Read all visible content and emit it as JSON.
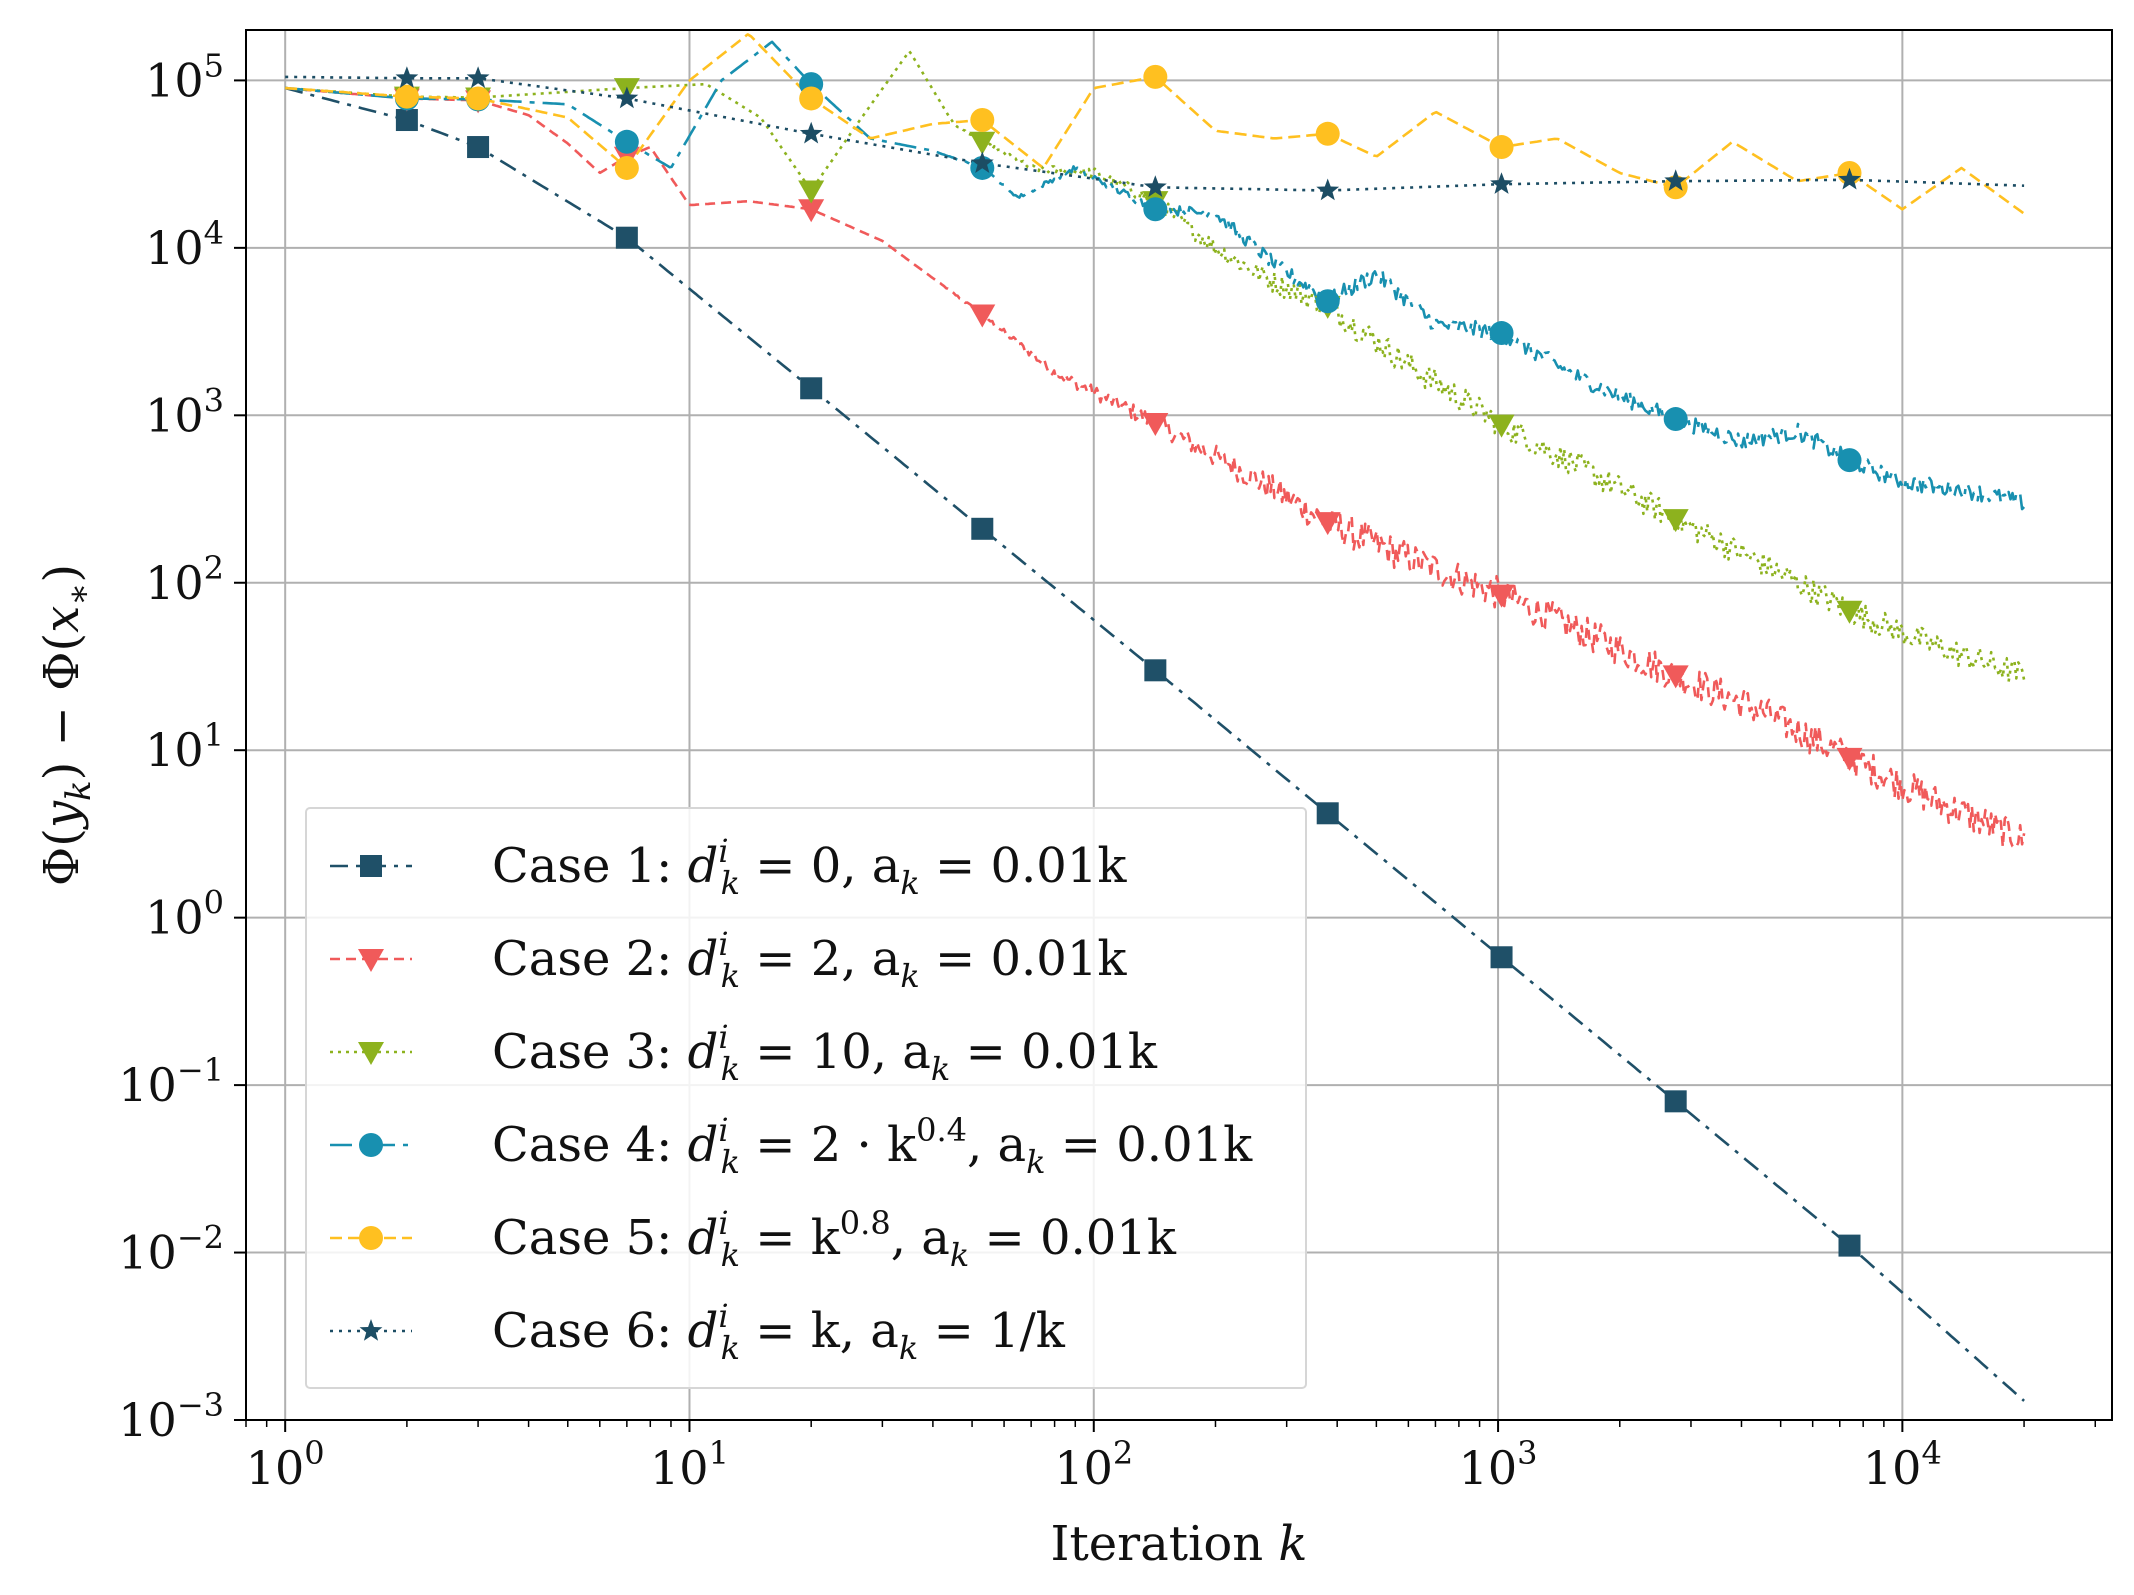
{
  "chart_data": {
    "type": "line",
    "xscale": "log",
    "yscale": "log",
    "xlim": [
      0.8,
      33000
    ],
    "ylim": [
      0.001,
      200000
    ],
    "grid": true,
    "xlabel": "Iteration k",
    "ylabel": "Φ(y_k) − Φ(x_*)",
    "legend_position": "lower-left",
    "x_ticks": [
      {
        "base": "10",
        "exp": "0",
        "value": 1
      },
      {
        "base": "10",
        "exp": "1",
        "value": 10
      },
      {
        "base": "10",
        "exp": "2",
        "value": 100
      },
      {
        "base": "10",
        "exp": "3",
        "value": 1000
      },
      {
        "base": "10",
        "exp": "4",
        "value": 10000
      }
    ],
    "y_ticks": [
      {
        "base": "10",
        "exp": "5",
        "value": 100000
      },
      {
        "base": "10",
        "exp": "4",
        "value": 10000
      },
      {
        "base": "10",
        "exp": "3",
        "value": 1000
      },
      {
        "base": "10",
        "exp": "2",
        "value": 100
      },
      {
        "base": "10",
        "exp": "1",
        "value": 10
      },
      {
        "base": "10",
        "exp": "0",
        "value": 1
      },
      {
        "base": "10",
        "exp": "−1",
        "value": 0.1
      },
      {
        "base": "10",
        "exp": "−2",
        "value": 0.01
      },
      {
        "base": "10",
        "exp": "−3",
        "value": 0.001
      }
    ],
    "series": [
      {
        "name": "Case 1: d_k^i = 0, a_k = 0.01k",
        "legend_parts": [
          "Case 1: ",
          "d",
          "i",
          "k",
          " = 0, a",
          "k",
          " = 0.01k"
        ],
        "color": "#1f5068",
        "marker": "square",
        "dash": "18,8,4,8",
        "x": [
          1,
          2,
          3,
          7,
          20,
          53,
          142,
          379,
          1020,
          2750,
          7400,
          20000
        ],
        "values": [
          90000,
          58000,
          40000,
          11500,
          1450,
          210,
          30,
          4.2,
          0.58,
          0.08,
          0.011,
          0.0013
        ],
        "marker_x": [
          2,
          3,
          7,
          20,
          53,
          142,
          379,
          1020,
          2750,
          7400
        ]
      },
      {
        "name": "Case 2: d_k^i = 2, a_k = 0.01k",
        "color": "#f05a5a",
        "marker": "triangle-down",
        "dash": "10,6",
        "x": [
          1,
          2,
          3,
          4,
          5,
          6,
          7,
          8,
          10,
          14,
          20,
          30,
          53,
          80,
          142,
          250,
          379,
          600,
          1020,
          1700,
          2750,
          4500,
          7400,
          12000,
          20000
        ],
        "values": [
          90000,
          78000,
          76000,
          62000,
          42000,
          28000,
          35000,
          40000,
          18000,
          19000,
          17000,
          11000,
          4000,
          1800,
          900,
          420,
          230,
          140,
          85,
          48,
          28,
          17,
          9,
          5,
          2.9
        ],
        "jitter": 0.1,
        "marker_x": [
          2,
          3,
          7,
          20,
          53,
          142,
          379,
          1020,
          2750,
          7400
        ]
      },
      {
        "name": "Case 3: d_k^i = 10, a_k = 0.01k",
        "color": "#8db21e",
        "marker": "triangle-down",
        "dash": "3,5",
        "x": [
          1,
          2,
          3,
          7,
          11,
          15,
          20,
          26,
          35,
          45,
          53,
          70,
          100,
          142,
          200,
          270,
          379,
          600,
          1020,
          1700,
          2750,
          4500,
          7400,
          12000,
          20000
        ],
        "values": [
          90000,
          80000,
          79000,
          90000,
          95000,
          60000,
          22000,
          55000,
          150000,
          55000,
          43000,
          30000,
          28000,
          19000,
          10000,
          6500,
          4500,
          2000,
          880,
          450,
          240,
          130,
          68,
          42,
          28
        ],
        "jitter": 0.08,
        "marker_x": [
          2,
          3,
          7,
          20,
          53,
          142,
          379,
          1020,
          2750,
          7400
        ]
      },
      {
        "name": "Case 4: d_k^i = 2 · k^0.4, a_k = 0.01k",
        "color": "#1890b0",
        "marker": "circle",
        "dash": "22,8,5,8",
        "x": [
          1,
          2,
          3,
          5,
          7,
          9,
          12,
          16,
          20,
          28,
          40,
          53,
          65,
          90,
          142,
          200,
          280,
          379,
          500,
          700,
          1020,
          1500,
          2000,
          2750,
          4000,
          5500,
          7400,
          10000,
          15000,
          20000
        ],
        "values": [
          90000,
          78000,
          77000,
          72000,
          43000,
          30000,
          100000,
          170000,
          95000,
          45000,
          38000,
          30000,
          20000,
          30000,
          17000,
          16000,
          8000,
          4800,
          7000,
          3500,
          3100,
          1800,
          1300,
          950,
          700,
          800,
          540,
          400,
          350,
          300
        ],
        "jitter": 0.05,
        "marker_x": [
          2,
          3,
          7,
          20,
          53,
          142,
          379,
          1020,
          2750,
          7400
        ]
      },
      {
        "name": "Case 5: d_k^i = k^0.8, a_k = 0.01k",
        "color": "#ffc020",
        "marker": "circle",
        "dash": "12,6",
        "x": [
          1,
          2,
          3,
          5,
          7,
          10,
          14,
          20,
          28,
          40,
          53,
          75,
          100,
          142,
          200,
          280,
          379,
          500,
          700,
          1020,
          1400,
          2000,
          2750,
          3800,
          5500,
          7400,
          10000,
          14000,
          20000
        ],
        "values": [
          90000,
          80000,
          78000,
          60000,
          30000,
          100000,
          190000,
          78000,
          45000,
          55000,
          58000,
          30000,
          90000,
          105000,
          50000,
          45000,
          48000,
          35000,
          65000,
          40000,
          45000,
          28000,
          23000,
          43000,
          25000,
          28000,
          17000,
          30000,
          16000
        ],
        "jitter": 0,
        "marker_x": [
          2,
          3,
          7,
          20,
          53,
          142,
          379,
          1020,
          2750,
          7400
        ]
      },
      {
        "name": "Case 6: d_k^i = k, a_k = 1/k",
        "color": "#1c4d64",
        "marker": "star",
        "dash": "3,6",
        "x": [
          1,
          2,
          3,
          7,
          20,
          53,
          142,
          379,
          1020,
          2750,
          7400,
          20000
        ],
        "values": [
          105000,
          103000,
          103000,
          78000,
          48000,
          32000,
          23000,
          22000,
          24000,
          25000,
          25500,
          23500
        ],
        "jitter": 0,
        "marker_x": [
          2,
          3,
          7,
          20,
          53,
          142,
          379,
          1020,
          2750,
          7400
        ]
      }
    ]
  },
  "labels": {
    "xlabel_text": "Iteration ",
    "xlabel_var": "k",
    "legend": [
      {
        "prefix": "Case 1: ",
        "d": "d",
        "sup": "i",
        "sub": "k",
        "mid": " = 0, a",
        "sub2": "k",
        "tail": " = 0.01k"
      },
      {
        "prefix": "Case 2: ",
        "d": "d",
        "sup": "i",
        "sub": "k",
        "mid": " = 2, a",
        "sub2": "k",
        "tail": " = 0.01k"
      },
      {
        "prefix": "Case 3: ",
        "d": "d",
        "sup": "i",
        "sub": "k",
        "mid": " = 10, a",
        "sub2": "k",
        "tail": " = 0.01k"
      },
      {
        "prefix": "Case 4: ",
        "d": "d",
        "sup": "i",
        "sub": "k",
        "mid": " = 2 · k",
        "sup2": "0.4",
        "mid2": ", a",
        "sub2": "k",
        "tail": " = 0.01k"
      },
      {
        "prefix": "Case 5: ",
        "d": "d",
        "sup": "i",
        "sub": "k",
        "mid": " = k",
        "sup2": "0.8",
        "mid2": ", a",
        "sub2": "k",
        "tail": " = 0.01k"
      },
      {
        "prefix": "Case 6: ",
        "d": "d",
        "sup": "i",
        "sub": "k",
        "mid": " = k, a",
        "sub2": "k",
        "tail": " = 1/k"
      }
    ]
  }
}
